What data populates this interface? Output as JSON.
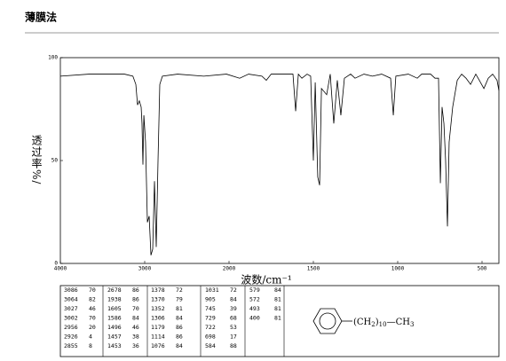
{
  "header": {
    "title": "薄膜法"
  },
  "chart_data": {
    "type": "line",
    "xlabel": "波数/cm⁻¹",
    "ylabel": "透过率%/",
    "x": [
      4000,
      3660,
      3240,
      3140,
      3105,
      3085,
      3064,
      3042,
      3032,
      3021,
      3010,
      2990,
      2968,
      2947,
      2926,
      2905,
      2884,
      2863,
      2842,
      2821,
      2790,
      2610,
      2300,
      2030,
      1937,
      1884,
      1805,
      1779,
      1750,
      1621,
      1605,
      1589,
      1568,
      1537,
      1516,
      1500,
      1489,
      1474,
      1463,
      1452,
      1421,
      1400,
      1379,
      1358,
      1337,
      1316,
      1279,
      1253,
      1200,
      1150,
      1095,
      1042,
      1026,
      1011,
      937,
      884,
      858,
      805,
      779,
      758,
      747,
      737,
      726,
      716,
      705,
      695,
      674,
      647,
      621,
      595,
      568,
      537,
      516,
      489,
      463,
      437,
      411,
      400
    ],
    "values": [
      91,
      92,
      92,
      91,
      87,
      77,
      79,
      76,
      68,
      48,
      72,
      59,
      20,
      23,
      4,
      7,
      40,
      8,
      50,
      87,
      91,
      92,
      91,
      92,
      90,
      92,
      91,
      89,
      92,
      92,
      74,
      92,
      90,
      92,
      91,
      50,
      88,
      42,
      38,
      85,
      82,
      92,
      68,
      89,
      72,
      90,
      92,
      90,
      92,
      91,
      92,
      90,
      72,
      91,
      92,
      90,
      92,
      92,
      90,
      90,
      39,
      76,
      68,
      50,
      18,
      59,
      76,
      89,
      92,
      90,
      87,
      92,
      89,
      85,
      90,
      92,
      89,
      84
    ],
    "color": "#000000",
    "xlim": [
      4000,
      400
    ],
    "x_scale_break": 2000,
    "xticks": [
      4000,
      3000,
      2000,
      1500,
      1000,
      500
    ],
    "ylim": [
      0,
      100
    ],
    "yticks": [
      0,
      50,
      100
    ]
  },
  "peak_table": [
    [
      [
        3086,
        70
      ],
      [
        3064,
        82
      ],
      [
        3027,
        46
      ],
      [
        3002,
        70
      ],
      [
        2956,
        20
      ],
      [
        2926,
        4
      ],
      [
        2855,
        8
      ]
    ],
    [
      [
        2678,
        86
      ],
      [
        1938,
        86
      ],
      [
        1605,
        70
      ],
      [
        1586,
        84
      ],
      [
        1496,
        46
      ],
      [
        1457,
        38
      ],
      [
        1453,
        36
      ]
    ],
    [
      [
        1378,
        72
      ],
      [
        1370,
        79
      ],
      [
        1352,
        81
      ],
      [
        1306,
        84
      ],
      [
        1179,
        86
      ],
      [
        1114,
        86
      ],
      [
        1076,
        84
      ]
    ],
    [
      [
        1031,
        72
      ],
      [
        905,
        84
      ],
      [
        745,
        39
      ],
      [
        729,
        68
      ],
      [
        722,
        53
      ],
      [
        698,
        17
      ],
      [
        584,
        88
      ]
    ],
    [
      [
        579,
        84
      ],
      [
        572,
        81
      ],
      [
        493,
        81
      ],
      [
        400,
        81
      ]
    ]
  ],
  "structure": {
    "substituent": [
      "(CH",
      "2",
      ")",
      "10",
      "—CH",
      "3"
    ]
  }
}
